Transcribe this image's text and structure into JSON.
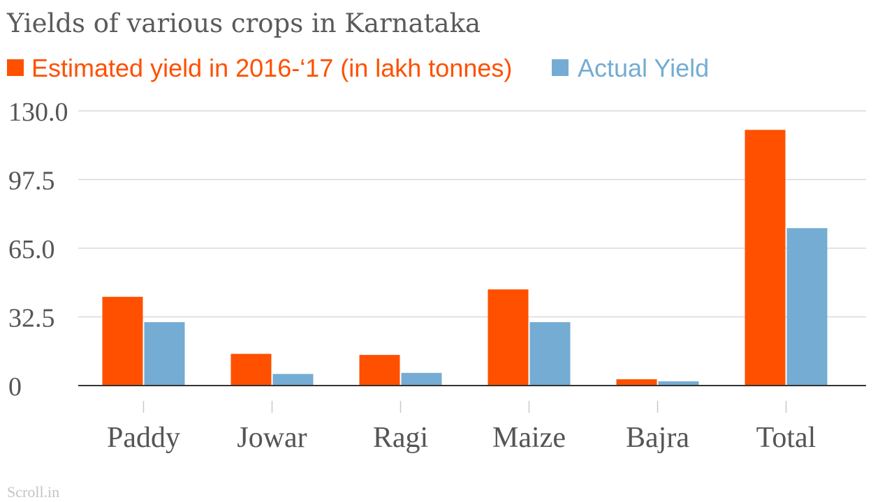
{
  "chart_data": {
    "type": "bar",
    "title": "Yields of various crops in Karnataka",
    "categories": [
      "Paddy",
      "Jowar",
      "Ragi",
      "Maize",
      "Bajra",
      "Total"
    ],
    "series": [
      {
        "name": "Estimated yield in 2016-‘17 (in lakh tonnes)",
        "color": "#ff5000",
        "values": [
          42.0,
          15.0,
          14.5,
          45.5,
          3.0,
          121.0
        ]
      },
      {
        "name": "Actual Yield",
        "color": "#74acd3",
        "values": [
          30.0,
          5.5,
          6.0,
          30.0,
          2.0,
          74.5
        ]
      }
    ],
    "yticks": [
      "0",
      "32.5",
      "65.0",
      "97.5",
      "130.0"
    ],
    "ylim": [
      0,
      130
    ],
    "grid": true,
    "legend": "top-left",
    "source": "Scroll.in"
  }
}
